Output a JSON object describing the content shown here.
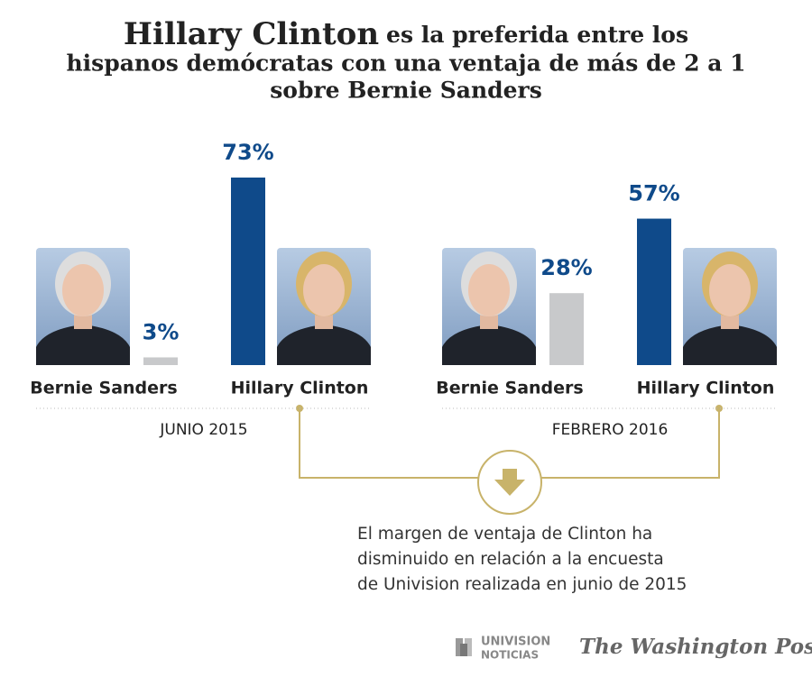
{
  "chart_data": {
    "type": "bar",
    "title": {
      "highlight": "Hillary Clinton",
      "lines": [
        "es la preferida entre los",
        "hispanos demócratas con una ventaja de más de 2 a 1",
        "sobre Bernie Sanders"
      ]
    },
    "categories": [
      "Bernie Sanders",
      "Hillary Clinton"
    ],
    "colors": [
      "#c8c9cb",
      "#0f4a8a"
    ],
    "panels": [
      {
        "period": "JUNIO 2015",
        "values": [
          3,
          73
        ],
        "value_labels": [
          "3%",
          "73%"
        ]
      },
      {
        "period": "FEBRERO 2016",
        "values": [
          28,
          57
        ],
        "value_labels": [
          "28%",
          "57%"
        ]
      }
    ],
    "annotation": [
      "El margen de ventaja de Clinton ha",
      "disminuido en relación a la encuesta",
      "de Univision realizada en junio de 2015"
    ]
  },
  "footer": {
    "univision": [
      "UNIVISION",
      "NOTICIAS"
    ],
    "washington_post": "The Washington Post"
  }
}
